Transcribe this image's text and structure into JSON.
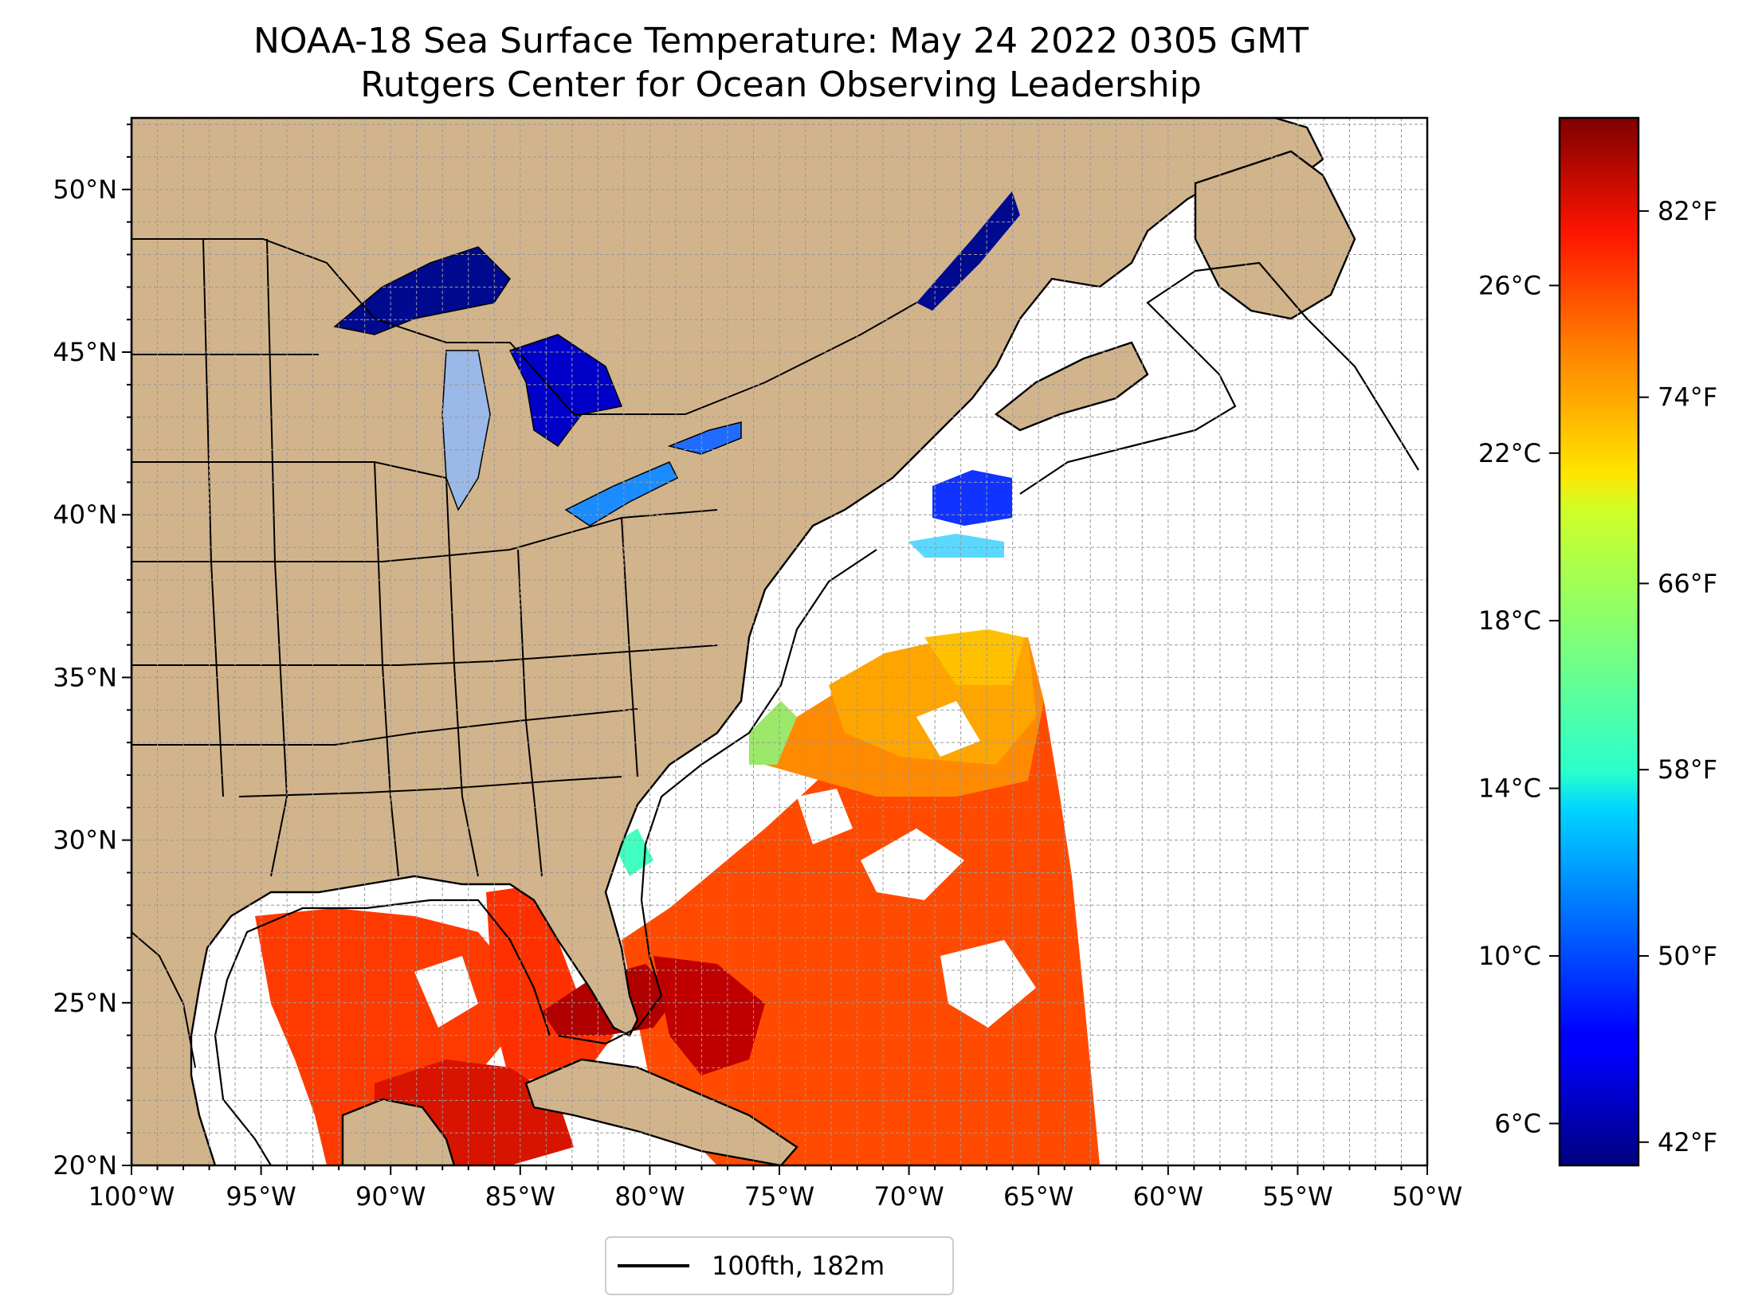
{
  "title": {
    "line1": "NOAA-18 Sea Surface Temperature: May 24 2022 0305 GMT",
    "line2": "Rutgers Center for Ocean Observing Leadership"
  },
  "map": {
    "lon_range": [
      -100,
      -50
    ],
    "lat_range": [
      20,
      52.2
    ],
    "lon_ticks": [
      {
        "value": -100,
        "label": "100°W"
      },
      {
        "value": -95,
        "label": "95°W"
      },
      {
        "value": -90,
        "label": "90°W"
      },
      {
        "value": -85,
        "label": "85°W"
      },
      {
        "value": -80,
        "label": "80°W"
      },
      {
        "value": -75,
        "label": "75°W"
      },
      {
        "value": -70,
        "label": "70°W"
      },
      {
        "value": -65,
        "label": "65°W"
      },
      {
        "value": -60,
        "label": "60°W"
      },
      {
        "value": -55,
        "label": "55°W"
      },
      {
        "value": -50,
        "label": "50°W"
      }
    ],
    "lat_ticks": [
      {
        "value": 20,
        "label": "20°N"
      },
      {
        "value": 25,
        "label": "25°N"
      },
      {
        "value": 30,
        "label": "30°N"
      },
      {
        "value": 35,
        "label": "35°N"
      },
      {
        "value": 40,
        "label": "40°N"
      },
      {
        "value": 45,
        "label": "45°N"
      },
      {
        "value": 50,
        "label": "50°N"
      }
    ],
    "grid": true,
    "land_color": "#d2b48c",
    "ocean_color": "#ffffff",
    "lake_color": "#9ab8e8"
  },
  "colorbar": {
    "colormap": "jet",
    "range_c": [
      5,
      30
    ],
    "celsius_ticks": [
      {
        "value": 6,
        "label": "6°C"
      },
      {
        "value": 10,
        "label": "10°C"
      },
      {
        "value": 14,
        "label": "14°C"
      },
      {
        "value": 18,
        "label": "18°C"
      },
      {
        "value": 22,
        "label": "22°C"
      },
      {
        "value": 26,
        "label": "26°C"
      }
    ],
    "fahrenheit_ticks": [
      {
        "value": 42,
        "label": "42°F"
      },
      {
        "value": 50,
        "label": "50°F"
      },
      {
        "value": 58,
        "label": "58°F"
      },
      {
        "value": 66,
        "label": "66°F"
      },
      {
        "value": 74,
        "label": "74°F"
      },
      {
        "value": 82,
        "label": "82°F"
      }
    ]
  },
  "legend": {
    "label": "100fth, 182m",
    "placement": "bottom-center"
  }
}
